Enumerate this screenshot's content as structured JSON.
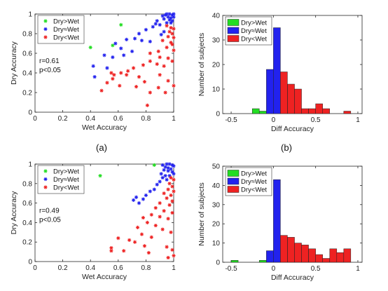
{
  "captions": {
    "a": "(a)",
    "b": "(b)"
  },
  "colors": {
    "dry_gt_wet": "#22dd22",
    "dry_eq_wet": "#2222ee",
    "dry_lt_wet": "#ee2222",
    "axes": "#262626"
  },
  "chart_data": [
    {
      "id": "scatter-a",
      "type": "scatter",
      "xlabel": "Wet Accuracy",
      "ylabel": "Dry Accuracy",
      "xlim": [
        0,
        1
      ],
      "ylim": [
        0,
        1
      ],
      "xticks": [
        "0",
        "0.2",
        "0.4",
        "0.6",
        "0.8",
        "1"
      ],
      "yticks": [
        "0",
        "0.2",
        "0.4",
        "0.6",
        "0.8",
        "1"
      ],
      "annotation": [
        "r=0.61",
        "p<0.05"
      ],
      "legend": [
        "Dry>Wet",
        "Dry≈Wet",
        "Dry<Wet"
      ],
      "legend_position": "top-left",
      "series": [
        {
          "name": "Dry>Wet",
          "points": [
            [
              0.4,
              0.66
            ],
            [
              0.62,
              0.89
            ],
            [
              0.56,
              0.68
            ]
          ]
        },
        {
          "name": "Dry≈Wet",
          "points": [
            [
              0.92,
              0.98
            ],
            [
              0.95,
              1.0
            ],
            [
              0.97,
              1.0
            ],
            [
              0.99,
              0.99
            ],
            [
              1.0,
              1.0
            ],
            [
              0.94,
              0.99
            ],
            [
              0.96,
              0.97
            ],
            [
              0.98,
              0.96
            ],
            [
              1.0,
              0.97
            ],
            [
              0.93,
              0.95
            ],
            [
              0.97,
              0.94
            ],
            [
              0.99,
              0.93
            ],
            [
              0.88,
              0.93
            ],
            [
              0.9,
              0.89
            ],
            [
              0.85,
              0.87
            ],
            [
              0.87,
              0.9
            ],
            [
              0.95,
              0.91
            ],
            [
              0.98,
              0.91
            ],
            [
              0.8,
              0.84
            ],
            [
              0.75,
              0.8
            ],
            [
              0.93,
              0.82
            ],
            [
              0.91,
              0.79
            ],
            [
              0.72,
              0.75
            ],
            [
              0.77,
              0.73
            ],
            [
              0.66,
              0.74
            ],
            [
              0.62,
              0.65
            ],
            [
              0.7,
              0.62
            ],
            [
              0.64,
              0.58
            ],
            [
              0.56,
              0.56
            ],
            [
              0.5,
              0.58
            ],
            [
              0.42,
              0.47
            ],
            [
              0.43,
              0.36
            ],
            [
              0.52,
              0.45
            ],
            [
              0.58,
              0.7
            ],
            [
              0.83,
              0.72
            ]
          ]
        },
        {
          "name": "Dry<Wet",
          "points": [
            [
              0.95,
              0.88
            ],
            [
              0.98,
              0.86
            ],
            [
              1.0,
              0.85
            ],
            [
              0.97,
              0.82
            ],
            [
              0.99,
              0.8
            ],
            [
              0.96,
              0.77
            ],
            [
              1.0,
              0.76
            ],
            [
              0.92,
              0.73
            ],
            [
              0.98,
              0.71
            ],
            [
              0.99,
              0.69
            ],
            [
              0.95,
              0.66
            ],
            [
              0.89,
              0.62
            ],
            [
              1.0,
              0.63
            ],
            [
              0.83,
              0.6
            ],
            [
              0.9,
              0.56
            ],
            [
              0.96,
              0.55
            ],
            [
              0.99,
              0.52
            ],
            [
              0.83,
              0.52
            ],
            [
              0.88,
              0.49
            ],
            [
              0.78,
              0.48
            ],
            [
              0.93,
              0.47
            ],
            [
              0.71,
              0.45
            ],
            [
              0.67,
              0.42
            ],
            [
              0.62,
              0.4
            ],
            [
              0.66,
              0.38
            ],
            [
              0.55,
              0.4
            ],
            [
              0.57,
              0.38
            ],
            [
              0.56,
              0.34
            ],
            [
              0.75,
              0.36
            ],
            [
              0.79,
              0.31
            ],
            [
              0.9,
              0.38
            ],
            [
              0.52,
              0.3
            ],
            [
              0.61,
              0.27
            ],
            [
              0.73,
              0.26
            ],
            [
              0.48,
              0.22
            ],
            [
              0.83,
              0.2
            ],
            [
              0.96,
              0.32
            ],
            [
              1.0,
              0.27
            ],
            [
              0.94,
              0.2
            ],
            [
              0.81,
              0.07
            ],
            [
              0.89,
              0.25
            ]
          ]
        }
      ]
    },
    {
      "id": "hist-b",
      "type": "bar",
      "xlabel": "Diff Accuracy",
      "ylabel": "Number of subjects",
      "xlim": [
        -0.6,
        1.05
      ],
      "ylim": [
        0,
        40
      ],
      "xticks": [
        "-0.5",
        "0",
        "0.5",
        "1"
      ],
      "xtick_values": [
        -0.5,
        0,
        0.5,
        1
      ],
      "yticks": [
        "0",
        "10",
        "20",
        "30",
        "40"
      ],
      "legend": [
        "Dry>Wet",
        "Dry≈Wet",
        "Dry<Wet"
      ],
      "legend_position": "top-left",
      "bin_width": 0.083,
      "series": [
        {
          "name": "Dry>Wet",
          "bins": [
            [
              -0.333,
              0
            ],
            [
              -0.25,
              2
            ],
            [
              -0.167,
              1
            ]
          ]
        },
        {
          "name": "Dry≈Wet",
          "bins": [
            [
              -0.083,
              18
            ],
            [
              0.0,
              35
            ]
          ]
        },
        {
          "name": "Dry<Wet",
          "bins": [
            [
              0.083,
              17
            ],
            [
              0.167,
              12
            ],
            [
              0.25,
              10
            ],
            [
              0.333,
              2
            ],
            [
              0.417,
              2
            ],
            [
              0.5,
              4
            ],
            [
              0.583,
              2
            ],
            [
              0.667,
              0
            ],
            [
              0.75,
              0
            ],
            [
              0.833,
              1
            ]
          ]
        }
      ]
    },
    {
      "id": "scatter-c",
      "type": "scatter",
      "xlabel": "Wet Accuracy",
      "ylabel": "Dry Accuracy",
      "xlim": [
        0,
        1
      ],
      "ylim": [
        0,
        1
      ],
      "xticks": [
        "0",
        "0.2",
        "0.4",
        "0.6",
        "0.8",
        "1"
      ],
      "yticks": [
        "0",
        "0.2",
        "0.4",
        "0.6",
        "0.8",
        "1"
      ],
      "annotation": [
        "r=0.49",
        "p<0.05"
      ],
      "legend": [
        "Dry>Wet",
        "Dry≈Wet",
        "Dry<Wet"
      ],
      "legend_position": "top-left",
      "series": [
        {
          "name": "Dry>Wet",
          "points": [
            [
              0.47,
              0.88
            ],
            [
              0.86,
              0.99
            ]
          ]
        },
        {
          "name": "Dry≈Wet",
          "points": [
            [
              0.92,
              0.99
            ],
            [
              0.95,
              1.0
            ],
            [
              0.97,
              1.0
            ],
            [
              0.99,
              0.99
            ],
            [
              1.0,
              0.98
            ],
            [
              0.94,
              0.97
            ],
            [
              0.96,
              0.96
            ],
            [
              0.98,
              0.95
            ],
            [
              0.93,
              0.94
            ],
            [
              0.96,
              0.93
            ],
            [
              0.99,
              0.92
            ],
            [
              0.91,
              0.9
            ],
            [
              0.94,
              0.88
            ],
            [
              0.97,
              0.88
            ],
            [
              1.0,
              0.9
            ],
            [
              0.92,
              0.86
            ],
            [
              0.95,
              0.84
            ],
            [
              0.9,
              0.82
            ],
            [
              0.88,
              0.79
            ],
            [
              0.86,
              0.74
            ],
            [
              0.83,
              0.72
            ],
            [
              0.8,
              0.68
            ],
            [
              0.78,
              0.64
            ],
            [
              0.73,
              0.66
            ],
            [
              0.71,
              0.63
            ],
            [
              0.75,
              0.6
            ]
          ]
        },
        {
          "name": "Dry<Wet",
          "points": [
            [
              0.98,
              0.86
            ],
            [
              1.0,
              0.84
            ],
            [
              0.97,
              0.8
            ],
            [
              0.99,
              0.77
            ],
            [
              0.96,
              0.74
            ],
            [
              1.0,
              0.72
            ],
            [
              0.93,
              0.7
            ],
            [
              0.98,
              0.68
            ],
            [
              0.95,
              0.65
            ],
            [
              0.99,
              0.62
            ],
            [
              0.9,
              0.6
            ],
            [
              0.97,
              0.58
            ],
            [
              0.87,
              0.55
            ],
            [
              0.93,
              0.52
            ],
            [
              0.99,
              0.5
            ],
            [
              0.84,
              0.48
            ],
            [
              0.9,
              0.46
            ],
            [
              0.96,
              0.44
            ],
            [
              0.78,
              0.45
            ],
            [
              0.81,
              0.4
            ],
            [
              0.87,
              0.37
            ],
            [
              0.74,
              0.35
            ],
            [
              0.92,
              0.33
            ],
            [
              0.98,
              0.3
            ],
            [
              0.77,
              0.28
            ],
            [
              0.84,
              0.25
            ],
            [
              0.68,
              0.22
            ],
            [
              0.72,
              0.2
            ],
            [
              0.6,
              0.24
            ],
            [
              0.79,
              0.16
            ],
            [
              0.64,
              0.11
            ],
            [
              0.55,
              0.14
            ],
            [
              0.55,
              0.11
            ],
            [
              0.95,
              0.15
            ],
            [
              0.99,
              0.12
            ],
            [
              0.82,
              0.09
            ],
            [
              0.96,
              0.04
            ],
            [
              1.0,
              0.06
            ]
          ]
        }
      ]
    },
    {
      "id": "hist-d",
      "type": "bar",
      "xlabel": "Diff Accuracy",
      "ylabel": "Number of subjects",
      "xlim": [
        -0.6,
        1.05
      ],
      "ylim": [
        0,
        50
      ],
      "xticks": [
        "-0.5",
        "0",
        "0.5",
        "1"
      ],
      "xtick_values": [
        -0.5,
        0,
        0.5,
        1
      ],
      "yticks": [
        "0",
        "10",
        "20",
        "30",
        "40",
        "50"
      ],
      "legend": [
        "Dry>Wet",
        "Dry≈Wet",
        "Dry<Wet"
      ],
      "legend_position": "top-left",
      "bin_width": 0.083,
      "series": [
        {
          "name": "Dry>Wet",
          "bins": [
            [
              -0.5,
              1
            ],
            [
              -0.167,
              1
            ]
          ]
        },
        {
          "name": "Dry≈Wet",
          "bins": [
            [
              -0.083,
              6
            ],
            [
              0.0,
              43
            ]
          ]
        },
        {
          "name": "Dry<Wet",
          "bins": [
            [
              0.083,
              14
            ],
            [
              0.167,
              13
            ],
            [
              0.25,
              10
            ],
            [
              0.333,
              9
            ],
            [
              0.417,
              7
            ],
            [
              0.5,
              4
            ],
            [
              0.583,
              2
            ],
            [
              0.667,
              7
            ],
            [
              0.75,
              5
            ],
            [
              0.833,
              7
            ]
          ]
        }
      ]
    }
  ]
}
